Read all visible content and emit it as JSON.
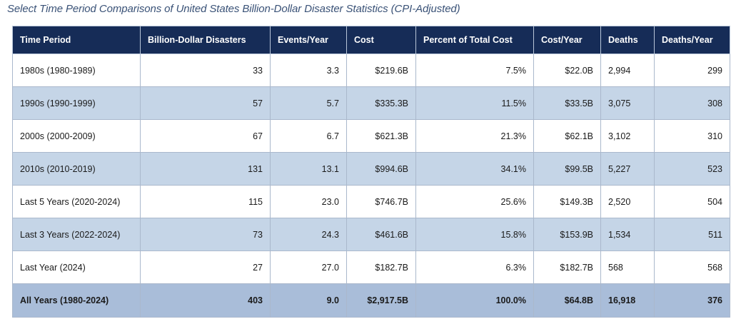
{
  "caption": "Select Time Period Comparisons of United States Billion-Dollar Disaster Statistics (CPI-Adjusted)",
  "table": {
    "headers": [
      "Time Period",
      "Billion-Dollar Disasters",
      "Events/Year",
      "Cost",
      "Percent of Total Cost",
      "Cost/Year",
      "Deaths",
      "Deaths/Year"
    ],
    "rows": [
      [
        "1980s (1980-1989)",
        "33",
        "3.3",
        "$219.6B",
        "7.5%",
        "$22.0B",
        "2,994",
        "299"
      ],
      [
        "1990s (1990-1999)",
        "57",
        "5.7",
        "$335.3B",
        "11.5%",
        "$33.5B",
        "3,075",
        "308"
      ],
      [
        "2000s (2000-2009)",
        "67",
        "6.7",
        "$621.3B",
        "21.3%",
        "$62.1B",
        "3,102",
        "310"
      ],
      [
        "2010s (2010-2019)",
        "131",
        "13.1",
        "$994.6B",
        "34.1%",
        "$99.5B",
        "5,227",
        "523"
      ],
      [
        "Last 5 Years (2020-2024)",
        "115",
        "23.0",
        "$746.7B",
        "25.6%",
        "$149.3B",
        "2,520",
        "504"
      ],
      [
        "Last 3 Years (2022-2024)",
        "73",
        "24.3",
        "$461.6B",
        "15.8%",
        "$153.9B",
        "1,534",
        "511"
      ],
      [
        "Last Year (2024)",
        "27",
        "27.0",
        "$182.7B",
        "6.3%",
        "$182.7B",
        "568",
        "568"
      ]
    ],
    "total": [
      "All Years (1980-2024)",
      "403",
      "9.0",
      "$2,917.5B",
      "100.0%",
      "$64.8B",
      "16,918",
      "376"
    ]
  },
  "colors": {
    "header_bg": "#162c57",
    "header_text": "#ffffff",
    "row_odd": "#ffffff",
    "row_even": "#c5d5e7",
    "total_row": "#a9bdd9",
    "caption_text": "#3a5277"
  }
}
